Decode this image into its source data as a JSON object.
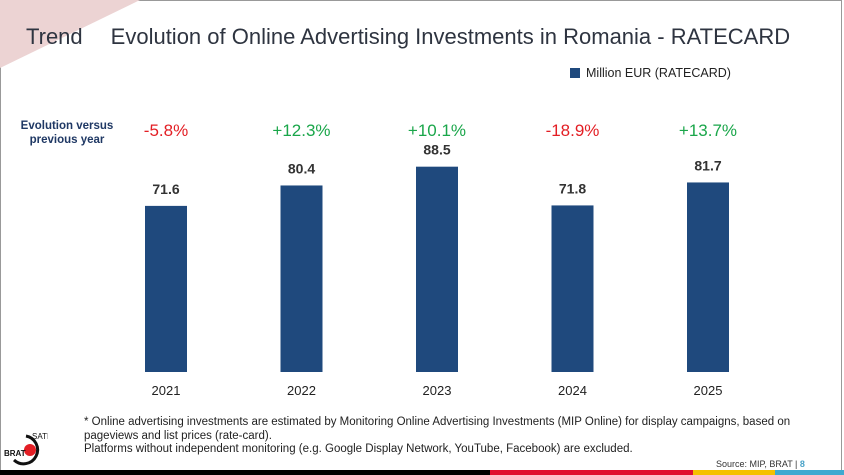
{
  "header": {
    "section": "Trend",
    "title": "Evolution of Online Advertising Investments in Romania - RATECARD"
  },
  "evolution_label": "Evolution versus previous year",
  "chart_data": {
    "type": "bar",
    "title": "Evolution of Online Advertising Investments in Romania - RATECARD",
    "categories": [
      "2021",
      "2022",
      "2023",
      "2024",
      "2025"
    ],
    "series": [
      {
        "name": "Million EUR (RATECARD)",
        "values": [
          71.6,
          80.4,
          88.5,
          71.8,
          81.7
        ],
        "color": "#1f497d"
      }
    ],
    "data_labels": [
      "71.6",
      "80.4",
      "88.5",
      "71.8",
      "81.7"
    ],
    "evolution": [
      "-5.8%",
      "+12.3%",
      "+10.1%",
      "-18.9%",
      "+13.7%"
    ],
    "evolution_colors": {
      "negative": "#e31e24",
      "positive": "#1aa64a"
    },
    "ylim": [
      0,
      90
    ],
    "grid": false,
    "legend": "top-right"
  },
  "footnote": [
    "* Online advertising investments are estimated by Monitoring Online Advertising Investments (MIP Online) for display campaigns, based on pageviews and list prices (rate-card).",
    "Platforms without independent monitoring (e.g. Google Display Network, YouTube, Facebook) are excluded."
  ],
  "source": "Source:  MIP,  BRAT",
  "page_number": "8",
  "logo": {
    "text1": "SATI",
    "text2": "BRAT"
  }
}
